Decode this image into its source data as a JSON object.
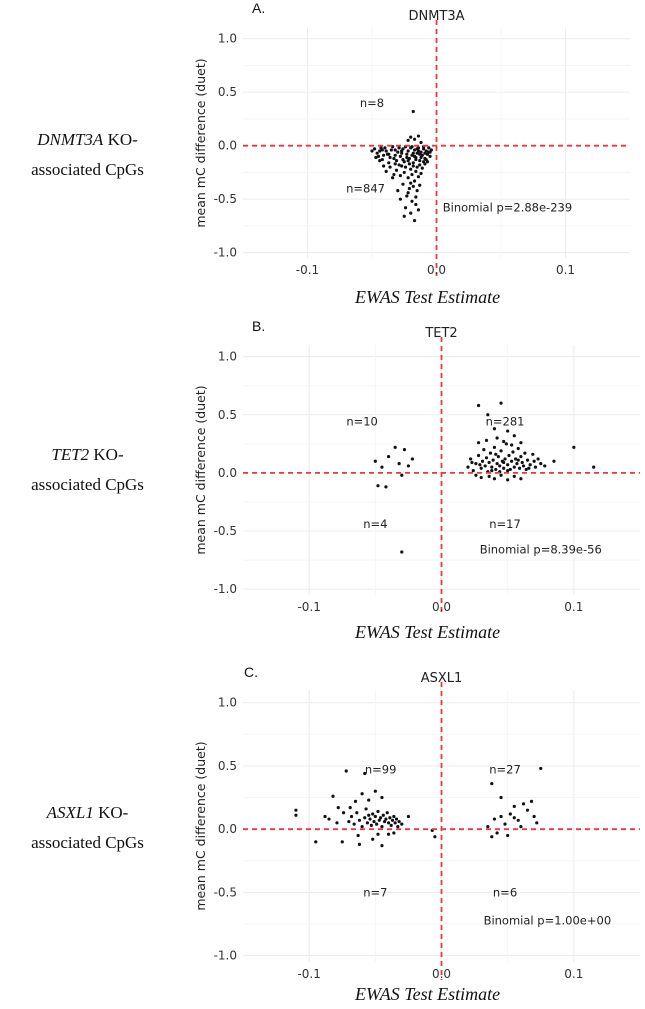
{
  "figure": {
    "rows": [
      {
        "gene": "DNMT3A",
        "suffix": " KO-",
        "line2": "associated  CpGs"
      },
      {
        "gene": "TET2",
        "suffix": " KO-",
        "line2": "associated  CpGs"
      },
      {
        "gene": "ASXL1",
        "suffix": " KO-",
        "line2": "associated  CpGs"
      }
    ],
    "colors": {
      "points": "#111111",
      "ref_lines": "#e8393f",
      "grid": "#ececec",
      "axis_text": "#333333"
    }
  },
  "chart_data": [
    {
      "type": "scatter",
      "panel_label": "A.",
      "title": "DNMT3A",
      "xlabel": "EWAS Test Estimate",
      "ylabel": "mean mC difference (duet)",
      "xlim": [
        -0.15,
        0.15
      ],
      "ylim": [
        -1.05,
        1.1
      ],
      "xticks": [
        -0.1,
        0.0,
        0.1
      ],
      "xtick_labels": [
        "-0.1",
        "0.0",
        "0.1"
      ],
      "yticks": [
        1.0,
        0.5,
        0.0,
        -0.5,
        -1.0
      ],
      "ytick_labels": [
        "1.0",
        "0.5",
        "0.0",
        "-0.5",
        "-1.0"
      ],
      "ref_lines": {
        "x": 0,
        "y": 0
      },
      "annotations": [
        {
          "text": "n=8",
          "x": -0.05,
          "y": 0.4
        },
        {
          "text": "n=847",
          "x": -0.055,
          "y": -0.4
        },
        {
          "text": "Binomial p=2.88e-239",
          "x": 0.055,
          "y": -0.58
        }
      ],
      "points": [
        [
          -0.018,
          0.32
        ],
        [
          -0.022,
          0.05
        ],
        [
          -0.02,
          0.08
        ],
        [
          -0.017,
          0.06
        ],
        [
          -0.014,
          0.09
        ],
        [
          -0.012,
          0.03
        ],
        [
          -0.05,
          -0.05
        ],
        [
          -0.045,
          -0.1
        ],
        [
          -0.04,
          -0.02
        ],
        [
          -0.038,
          -0.08
        ],
        [
          -0.035,
          -0.04
        ],
        [
          -0.033,
          -0.12
        ],
        [
          -0.03,
          -0.06
        ],
        [
          -0.028,
          -0.1
        ],
        [
          -0.026,
          -0.03
        ],
        [
          -0.025,
          -0.15
        ],
        [
          -0.023,
          -0.08
        ],
        [
          -0.022,
          -0.05
        ],
        [
          -0.021,
          -0.12
        ],
        [
          -0.02,
          -0.02
        ],
        [
          -0.019,
          -0.09
        ],
        [
          -0.018,
          -0.16
        ],
        [
          -0.017,
          -0.04
        ],
        [
          -0.016,
          -0.11
        ],
        [
          -0.015,
          -0.07
        ],
        [
          -0.014,
          -0.02
        ],
        [
          -0.013,
          -0.14
        ],
        [
          -0.012,
          -0.06
        ],
        [
          -0.011,
          -0.09
        ],
        [
          -0.01,
          -0.03
        ],
        [
          -0.009,
          -0.12
        ],
        [
          -0.008,
          -0.05
        ],
        [
          -0.007,
          -0.08
        ],
        [
          -0.006,
          -0.02
        ],
        [
          -0.005,
          -0.1
        ],
        [
          -0.004,
          -0.04
        ],
        [
          -0.046,
          -0.07
        ],
        [
          -0.042,
          -0.13
        ],
        [
          -0.037,
          -0.16
        ],
        [
          -0.032,
          -0.09
        ],
        [
          -0.029,
          -0.18
        ],
        [
          -0.027,
          -0.07
        ],
        [
          -0.024,
          -0.2
        ],
        [
          -0.02,
          -0.22
        ],
        [
          -0.018,
          -0.19
        ],
        [
          -0.016,
          -0.24
        ],
        [
          -0.015,
          -0.2
        ],
        [
          -0.013,
          -0.18
        ],
        [
          -0.011,
          -0.21
        ],
        [
          -0.009,
          -0.17
        ],
        [
          -0.007,
          -0.15
        ],
        [
          -0.031,
          -0.23
        ],
        [
          -0.028,
          -0.28
        ],
        [
          -0.025,
          -0.25
        ],
        [
          -0.022,
          -0.3
        ],
        [
          -0.019,
          -0.27
        ],
        [
          -0.017,
          -0.33
        ],
        [
          -0.014,
          -0.29
        ],
        [
          -0.012,
          -0.26
        ],
        [
          -0.026,
          -0.36
        ],
        [
          -0.021,
          -0.4
        ],
        [
          -0.018,
          -0.38
        ],
        [
          -0.015,
          -0.42
        ],
        [
          -0.023,
          -0.47
        ],
        [
          -0.019,
          -0.52
        ],
        [
          -0.016,
          -0.48
        ],
        [
          -0.013,
          -0.37
        ],
        [
          -0.028,
          -0.5
        ],
        [
          -0.024,
          -0.58
        ],
        [
          -0.02,
          -0.63
        ],
        [
          -0.017,
          -0.7
        ],
        [
          -0.014,
          -0.6
        ],
        [
          -0.025,
          -0.66
        ],
        [
          -0.03,
          -0.42
        ],
        [
          -0.034,
          -0.3
        ],
        [
          -0.039,
          -0.24
        ],
        [
          -0.041,
          -0.19
        ],
        [
          -0.044,
          -0.14
        ],
        [
          -0.047,
          -0.11
        ],
        [
          -0.036,
          -0.2
        ],
        [
          -0.033,
          -0.27
        ],
        [
          -0.048,
          -0.03
        ],
        [
          -0.043,
          -0.02
        ],
        [
          -0.039,
          -0.05
        ],
        [
          -0.034,
          -0.01
        ],
        [
          -0.029,
          -0.02
        ],
        [
          -0.024,
          -0.01
        ],
        [
          -0.019,
          -0.01
        ],
        [
          -0.015,
          -0.03
        ],
        [
          -0.01,
          -0.01
        ],
        [
          -0.006,
          -0.06
        ],
        [
          -0.008,
          -0.13
        ],
        [
          -0.012,
          -0.11
        ],
        [
          -0.016,
          -0.13
        ],
        [
          -0.021,
          -0.17
        ],
        [
          -0.026,
          -0.13
        ],
        [
          -0.031,
          -0.14
        ],
        [
          -0.036,
          -0.11
        ],
        [
          -0.041,
          -0.09
        ],
        [
          -0.044,
          -0.05
        ],
        [
          -0.032,
          -0.04
        ],
        [
          -0.027,
          -0.05
        ],
        [
          -0.023,
          -0.11
        ],
        [
          -0.018,
          -0.07
        ],
        [
          -0.014,
          -0.05
        ],
        [
          -0.009,
          -0.07
        ],
        [
          -0.005,
          -0.06
        ],
        [
          -0.01,
          -0.15
        ],
        [
          -0.013,
          -0.08
        ],
        [
          -0.017,
          -0.1
        ],
        [
          -0.022,
          -0.14
        ],
        [
          -0.027,
          -0.19
        ],
        [
          -0.032,
          -0.17
        ],
        [
          -0.037,
          -0.08
        ],
        [
          -0.042,
          -0.04
        ],
        [
          -0.02,
          -0.35
        ],
        [
          -0.016,
          -0.55
        ],
        [
          -0.022,
          -0.44
        ]
      ]
    },
    {
      "type": "scatter",
      "panel_label": "B.",
      "title": "TET2",
      "xlabel": "EWAS Test Estimate",
      "ylabel": "mean mC difference (duet)",
      "xlim": [
        -0.15,
        0.15
      ],
      "ylim": [
        -1.05,
        1.1
      ],
      "xticks": [
        -0.1,
        0.0,
        0.1
      ],
      "xtick_labels": [
        "-0.1",
        "0.0",
        "0.1"
      ],
      "yticks": [
        1.0,
        0.5,
        0.0,
        -0.5,
        -1.0
      ],
      "ytick_labels": [
        "1.0",
        "0.5",
        "0.0",
        "-0.5",
        "-1.0"
      ],
      "ref_lines": {
        "x": 0,
        "y": 0
      },
      "annotations": [
        {
          "text": "n=10",
          "x": -0.06,
          "y": 0.44
        },
        {
          "text": "n=281",
          "x": 0.048,
          "y": 0.44
        },
        {
          "text": "n=4",
          "x": -0.05,
          "y": -0.44
        },
        {
          "text": "n=17",
          "x": 0.048,
          "y": -0.44
        },
        {
          "text": "Binomial p=8.39e-56",
          "x": 0.075,
          "y": -0.66
        }
      ],
      "points": [
        [
          -0.035,
          0.22
        ],
        [
          -0.028,
          0.2
        ],
        [
          -0.05,
          0.1
        ],
        [
          -0.045,
          0.05
        ],
        [
          -0.04,
          0.14
        ],
        [
          -0.032,
          0.08
        ],
        [
          -0.025,
          0.06
        ],
        [
          -0.022,
          0.12
        ],
        [
          -0.048,
          -0.11
        ],
        [
          -0.03,
          -0.02
        ],
        [
          -0.042,
          -0.12
        ],
        [
          -0.03,
          -0.68
        ],
        [
          0.028,
          0.58
        ],
        [
          0.045,
          0.6
        ],
        [
          0.035,
          0.5
        ],
        [
          0.04,
          0.38
        ],
        [
          0.05,
          0.36
        ],
        [
          0.055,
          0.32
        ],
        [
          0.1,
          0.22
        ],
        [
          0.115,
          0.05
        ],
        [
          0.085,
          0.1
        ],
        [
          0.078,
          0.06
        ],
        [
          0.02,
          0.05
        ],
        [
          0.022,
          0.12
        ],
        [
          0.024,
          0.02
        ],
        [
          0.026,
          0.08
        ],
        [
          0.028,
          0.15
        ],
        [
          0.03,
          0.04
        ],
        [
          0.031,
          0.1
        ],
        [
          0.032,
          0.2
        ],
        [
          0.033,
          0.06
        ],
        [
          0.034,
          0.13
        ],
        [
          0.035,
          0.01
        ],
        [
          0.036,
          0.09
        ],
        [
          0.037,
          0.17
        ],
        [
          0.038,
          0.05
        ],
        [
          0.039,
          0.11
        ],
        [
          0.04,
          0.22
        ],
        [
          0.041,
          0.03
        ],
        [
          0.042,
          0.08
        ],
        [
          0.043,
          0.14
        ],
        [
          0.044,
          0.06
        ],
        [
          0.045,
          0.19
        ],
        [
          0.046,
          0.1
        ],
        [
          0.047,
          0.04
        ],
        [
          0.048,
          0.12
        ],
        [
          0.049,
          0.25
        ],
        [
          0.05,
          0.07
        ],
        [
          0.051,
          0.15
        ],
        [
          0.052,
          0.03
        ],
        [
          0.053,
          0.1
        ],
        [
          0.054,
          0.18
        ],
        [
          0.055,
          0.05
        ],
        [
          0.056,
          0.12
        ],
        [
          0.057,
          0.08
        ],
        [
          0.058,
          0.21
        ],
        [
          0.059,
          0.04
        ],
        [
          0.06,
          0.14
        ],
        [
          0.061,
          0.09
        ],
        [
          0.062,
          0.06
        ],
        [
          0.063,
          0.17
        ],
        [
          0.064,
          0.03
        ],
        [
          0.065,
          0.11
        ],
        [
          0.067,
          0.07
        ],
        [
          0.069,
          0.16
        ],
        [
          0.071,
          0.05
        ],
        [
          0.073,
          0.12
        ],
        [
          0.075,
          0.08
        ],
        [
          0.026,
          -0.02
        ],
        [
          0.03,
          -0.04
        ],
        [
          0.036,
          -0.03
        ],
        [
          0.04,
          -0.05
        ],
        [
          0.045,
          -0.02
        ],
        [
          0.05,
          -0.06
        ],
        [
          0.055,
          -0.03
        ],
        [
          0.06,
          -0.05
        ],
        [
          0.028,
          0.26
        ],
        [
          0.034,
          0.28
        ],
        [
          0.042,
          0.3
        ],
        [
          0.047,
          0.27
        ],
        [
          0.053,
          0.24
        ],
        [
          0.06,
          0.26
        ],
        [
          0.038,
          0.02
        ],
        [
          0.044,
          0.01
        ],
        [
          0.05,
          0.02
        ],
        [
          0.023,
          0.09
        ],
        [
          0.029,
          0.07
        ],
        [
          0.041,
          0.16
        ],
        [
          0.047,
          0.09
        ],
        [
          0.058,
          0.11
        ],
        [
          0.066,
          0.04
        ],
        [
          0.07,
          0.1
        ]
      ]
    },
    {
      "type": "scatter",
      "panel_label": "C.",
      "title": "ASXL1",
      "xlabel": "EWAS Test Estimate",
      "ylabel": "mean mC difference (duet)",
      "xlim": [
        -0.15,
        0.15
      ],
      "ylim": [
        -1.05,
        1.1
      ],
      "xticks": [
        -0.1,
        0.0,
        0.1
      ],
      "xtick_labels": [
        "-0.1",
        "0.0",
        "0.1"
      ],
      "yticks": [
        1.0,
        0.5,
        0.0,
        -0.5,
        -1.0
      ],
      "ytick_labels": [
        "1.0",
        "0.5",
        "0.0",
        "-0.5",
        "-1.0"
      ],
      "ref_lines": {
        "x": 0,
        "y": 0
      },
      "annotations": [
        {
          "text": "n=99",
          "x": -0.046,
          "y": 0.47
        },
        {
          "text": "n=27",
          "x": 0.048,
          "y": 0.47
        },
        {
          "text": "n=7",
          "x": -0.05,
          "y": -0.5
        },
        {
          "text": "n=6",
          "x": 0.048,
          "y": -0.5
        },
        {
          "text": "Binomial p=1.00e+00",
          "x": 0.08,
          "y": -0.72
        }
      ],
      "points": [
        [
          -0.11,
          0.15
        ],
        [
          -0.11,
          0.11
        ],
        [
          -0.095,
          -0.1
        ],
        [
          -0.082,
          0.26
        ],
        [
          -0.078,
          0.17
        ],
        [
          -0.072,
          0.46
        ],
        [
          -0.085,
          0.08
        ],
        [
          -0.07,
          0.06
        ],
        [
          -0.068,
          0.1
        ],
        [
          -0.066,
          0.04
        ],
        [
          -0.064,
          0.13
        ],
        [
          -0.062,
          0.07
        ],
        [
          -0.06,
          0.02
        ],
        [
          -0.058,
          0.09
        ],
        [
          -0.057,
          0.16
        ],
        [
          -0.056,
          0.05
        ],
        [
          -0.055,
          0.11
        ],
        [
          -0.054,
          0.08
        ],
        [
          -0.053,
          0.03
        ],
        [
          -0.052,
          0.12
        ],
        [
          -0.051,
          0.06
        ],
        [
          -0.05,
          0.1
        ],
        [
          -0.049,
          0.04
        ],
        [
          -0.048,
          0.14
        ],
        [
          -0.047,
          0.07
        ],
        [
          -0.046,
          0.09
        ],
        [
          -0.045,
          0.02
        ],
        [
          -0.044,
          0.11
        ],
        [
          -0.043,
          0.06
        ],
        [
          -0.042,
          0.08
        ],
        [
          -0.041,
          0.13
        ],
        [
          -0.04,
          0.05
        ],
        [
          -0.039,
          0.09
        ],
        [
          -0.038,
          0.03
        ],
        [
          -0.037,
          0.07
        ],
        [
          -0.036,
          0.1
        ],
        [
          -0.035,
          0.05
        ],
        [
          -0.034,
          0.08
        ],
        [
          -0.033,
          0.02
        ],
        [
          -0.032,
          0.06
        ],
        [
          -0.03,
          0.04
        ],
        [
          -0.025,
          0.1
        ],
        [
          -0.065,
          0.22
        ],
        [
          -0.06,
          0.28
        ],
        [
          -0.055,
          0.23
        ],
        [
          -0.05,
          0.3
        ],
        [
          -0.045,
          0.25
        ],
        [
          -0.058,
          0.44
        ],
        [
          -0.075,
          -0.1
        ],
        [
          -0.062,
          -0.12
        ],
        [
          -0.052,
          -0.08
        ],
        [
          -0.045,
          -0.13
        ],
        [
          -0.04,
          -0.04
        ],
        [
          -0.088,
          0.1
        ],
        [
          -0.079,
          0.05
        ],
        [
          -0.074,
          0.13
        ],
        [
          -0.069,
          0.17
        ],
        [
          -0.063,
          -0.05
        ],
        [
          -0.048,
          -0.04
        ],
        [
          -0.036,
          -0.03
        ],
        [
          0.075,
          0.48
        ],
        [
          0.038,
          0.36
        ],
        [
          0.045,
          0.25
        ],
        [
          0.055,
          0.18
        ],
        [
          0.062,
          0.2
        ],
        [
          0.07,
          0.1
        ],
        [
          0.048,
          0.04
        ],
        [
          0.04,
          0.08
        ],
        [
          0.052,
          0.12
        ],
        [
          0.058,
          0.07
        ],
        [
          0.065,
          0.15
        ],
        [
          0.035,
          0.02
        ],
        [
          0.042,
          -0.03
        ],
        [
          0.05,
          -0.05
        ],
        [
          0.038,
          -0.06
        ],
        [
          0.045,
          0.1
        ],
        [
          0.068,
          0.22
        ],
        [
          0.072,
          0.05
        ],
        [
          0.06,
          0.02
        ],
        [
          0.055,
          0.09
        ],
        [
          -0.007,
          -0.01
        ],
        [
          -0.005,
          -0.06
        ]
      ]
    }
  ]
}
